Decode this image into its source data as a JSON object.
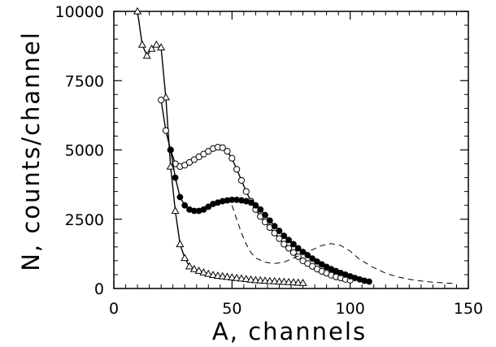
{
  "chart_data": {
    "type": "line",
    "xlabel": "A, channels",
    "ylabel": "N, counts/channel",
    "xlim": [
      0,
      150
    ],
    "ylim": [
      0,
      10000
    ],
    "x_ticks": [
      0,
      50,
      100,
      150
    ],
    "y_ticks": [
      0,
      2500,
      5000,
      7500,
      10000
    ],
    "x_tick_labels": [
      "0",
      "50",
      "100",
      "150"
    ],
    "y_tick_labels": [
      "0",
      "2500",
      "5000",
      "7500",
      10000
    ],
    "grid": false,
    "series": [
      {
        "marker": "triangle-open",
        "line": "solid",
        "x": [
          10,
          12,
          14,
          16,
          18,
          20,
          22,
          24,
          26,
          28,
          30,
          32,
          34,
          36,
          38,
          40,
          42,
          44,
          46,
          48,
          50,
          52,
          54,
          56,
          58,
          60,
          62,
          64,
          66,
          68,
          70,
          72,
          74,
          76,
          78,
          80
        ],
        "y": [
          10000,
          8800,
          8400,
          8650,
          8800,
          8700,
          6900,
          4400,
          2800,
          1600,
          1100,
          800,
          700,
          640,
          580,
          530,
          490,
          460,
          440,
          420,
          400,
          380,
          360,
          340,
          320,
          300,
          290,
          280,
          270,
          260,
          250,
          240,
          230,
          220,
          210,
          200
        ]
      },
      {
        "marker": "circle-open",
        "line": "solid",
        "x": [
          20,
          22,
          24,
          26,
          28,
          30,
          32,
          34,
          36,
          38,
          40,
          42,
          44,
          46,
          48,
          50,
          52,
          54,
          56,
          58,
          60,
          62,
          64,
          66,
          68,
          70,
          72,
          74,
          76,
          78,
          80,
          82,
          84,
          86,
          88,
          90,
          92,
          94,
          96,
          98,
          100
        ],
        "y": [
          6800,
          5700,
          5000,
          4500,
          4400,
          4450,
          4550,
          4650,
          4750,
          4850,
          4950,
          5050,
          5100,
          5080,
          4950,
          4700,
          4300,
          3900,
          3500,
          3150,
          2850,
          2600,
          2400,
          2200,
          2000,
          1800,
          1600,
          1450,
          1300,
          1150,
          1000,
          900,
          800,
          700,
          620,
          550,
          480,
          420,
          380,
          330,
          300
        ]
      },
      {
        "marker": "circle-filled",
        "line": "solid",
        "x": [
          24,
          26,
          28,
          30,
          32,
          34,
          36,
          38,
          40,
          42,
          44,
          46,
          48,
          50,
          52,
          54,
          56,
          58,
          60,
          62,
          64,
          66,
          68,
          70,
          72,
          74,
          76,
          78,
          80,
          82,
          84,
          86,
          88,
          90,
          92,
          94,
          96,
          98,
          100,
          102,
          104,
          106,
          108
        ],
        "y": [
          5000,
          4000,
          3300,
          3000,
          2850,
          2800,
          2800,
          2850,
          2950,
          3050,
          3100,
          3150,
          3180,
          3200,
          3200,
          3180,
          3150,
          3100,
          3000,
          2850,
          2650,
          2450,
          2250,
          2080,
          1900,
          1750,
          1600,
          1450,
          1320,
          1200,
          1080,
          970,
          870,
          780,
          700,
          630,
          560,
          500,
          440,
          380,
          330,
          280,
          250
        ]
      },
      {
        "marker": "none",
        "line": "dashed",
        "x": [
          50,
          52,
          54,
          56,
          58,
          60,
          64,
          68,
          72,
          76,
          80,
          84,
          88,
          92,
          96,
          100,
          104,
          110,
          115,
          120,
          125,
          130,
          135,
          140,
          145
        ],
        "y": [
          3000,
          2500,
          2000,
          1600,
          1300,
          1100,
          950,
          900,
          950,
          1100,
          1250,
          1400,
          1550,
          1620,
          1550,
          1350,
          1050,
          750,
          550,
          420,
          330,
          270,
          230,
          200,
          180
        ]
      }
    ]
  }
}
